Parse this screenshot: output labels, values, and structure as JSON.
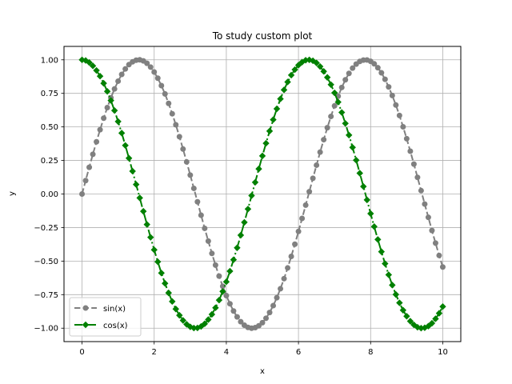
{
  "chart_data": {
    "type": "line",
    "title": "To study custom plot",
    "xlabel": "x",
    "ylabel": "y",
    "xlim": [
      -0.5,
      10.5
    ],
    "ylim": [
      -1.1,
      1.1
    ],
    "grid": true,
    "legend_position": "lower-left",
    "xticks": [
      0,
      2,
      4,
      6,
      8,
      10
    ],
    "xtick_labels": [
      "0",
      "2",
      "4",
      "6",
      "8",
      "10"
    ],
    "yticks": [
      -1.0,
      -0.75,
      -0.5,
      -0.25,
      0.0,
      0.25,
      0.5,
      0.75,
      1.0
    ],
    "ytick_labels": [
      "−1.00",
      "−0.75",
      "−0.50",
      "−0.25",
      "0.00",
      "0.25",
      "0.50",
      "0.75",
      "1.00"
    ],
    "series": [
      {
        "name": "sin(x)",
        "color": "#808080",
        "marker": "circle",
        "linestyle": "dashed",
        "x": [
          0.0,
          0.1,
          0.2,
          0.3,
          0.4,
          0.5,
          0.6,
          0.7,
          0.8,
          0.9,
          1.0,
          1.1,
          1.2,
          1.3,
          1.4,
          1.5,
          1.6,
          1.7,
          1.8,
          1.9,
          2.0,
          2.1,
          2.2,
          2.3,
          2.4,
          2.5,
          2.6,
          2.7,
          2.8,
          2.9,
          3.0,
          3.1,
          3.2,
          3.3,
          3.4,
          3.5,
          3.6,
          3.7,
          3.8,
          3.9,
          4.0,
          4.1,
          4.2,
          4.3,
          4.4,
          4.5,
          4.6,
          4.7,
          4.8,
          4.9,
          5.0,
          5.1,
          5.2,
          5.3,
          5.4,
          5.5,
          5.6,
          5.7,
          5.8,
          5.9,
          6.0,
          6.1,
          6.2,
          6.3,
          6.4,
          6.5,
          6.6,
          6.7,
          6.8,
          6.9,
          7.0,
          7.1,
          7.2,
          7.3,
          7.4,
          7.5,
          7.6,
          7.7,
          7.8,
          7.9,
          8.0,
          8.1,
          8.2,
          8.3,
          8.4,
          8.5,
          8.6,
          8.7,
          8.8,
          8.9,
          9.0,
          9.1,
          9.2,
          9.3,
          9.4,
          9.5,
          9.6,
          9.7,
          9.8,
          9.9,
          10.0
        ],
        "y": [
          0.0,
          0.1,
          0.199,
          0.296,
          0.389,
          0.479,
          0.565,
          0.644,
          0.717,
          0.783,
          0.841,
          0.891,
          0.932,
          0.964,
          0.985,
          0.997,
          1.0,
          0.992,
          0.974,
          0.946,
          0.909,
          0.863,
          0.808,
          0.746,
          0.675,
          0.598,
          0.516,
          0.427,
          0.335,
          0.239,
          0.141,
          0.042,
          -0.058,
          -0.158,
          -0.256,
          -0.351,
          -0.443,
          -0.53,
          -0.612,
          -0.688,
          -0.757,
          -0.818,
          -0.872,
          -0.916,
          -0.952,
          -0.978,
          -0.994,
          -1.0,
          -0.996,
          -0.982,
          -0.959,
          -0.926,
          -0.883,
          -0.832,
          -0.773,
          -0.706,
          -0.631,
          -0.551,
          -0.465,
          -0.374,
          -0.279,
          -0.182,
          -0.083,
          0.017,
          0.117,
          0.215,
          0.312,
          0.405,
          0.494,
          0.578,
          0.657,
          0.729,
          0.794,
          0.851,
          0.899,
          0.938,
          0.968,
          0.988,
          0.998,
          0.999,
          0.989,
          0.97,
          0.941,
          0.903,
          0.855,
          0.798,
          0.734,
          0.663,
          0.585,
          0.501,
          0.412,
          0.319,
          0.223,
          0.124,
          0.025,
          -0.075,
          -0.174,
          -0.272,
          -0.366,
          -0.458,
          -0.544
        ]
      },
      {
        "name": "cos(x)",
        "color": "#008000",
        "marker": "diamond",
        "linestyle": "dashdot",
        "x": [
          0.0,
          0.1,
          0.2,
          0.3,
          0.4,
          0.5,
          0.6,
          0.7,
          0.8,
          0.9,
          1.0,
          1.1,
          1.2,
          1.3,
          1.4,
          1.5,
          1.6,
          1.7,
          1.8,
          1.9,
          2.0,
          2.1,
          2.2,
          2.3,
          2.4,
          2.5,
          2.6,
          2.7,
          2.8,
          2.9,
          3.0,
          3.1,
          3.2,
          3.3,
          3.4,
          3.5,
          3.6,
          3.7,
          3.8,
          3.9,
          4.0,
          4.1,
          4.2,
          4.3,
          4.4,
          4.5,
          4.6,
          4.7,
          4.8,
          4.9,
          5.0,
          5.1,
          5.2,
          5.3,
          5.4,
          5.5,
          5.6,
          5.7,
          5.8,
          5.9,
          6.0,
          6.1,
          6.2,
          6.3,
          6.4,
          6.5,
          6.6,
          6.7,
          6.8,
          6.9,
          7.0,
          7.1,
          7.2,
          7.3,
          7.4,
          7.5,
          7.6,
          7.7,
          7.8,
          7.9,
          8.0,
          8.1,
          8.2,
          8.3,
          8.4,
          8.5,
          8.6,
          8.7,
          8.8,
          8.9,
          9.0,
          9.1,
          9.2,
          9.3,
          9.4,
          9.5,
          9.6,
          9.7,
          9.8,
          9.9,
          10.0
        ],
        "y": [
          1.0,
          0.995,
          0.98,
          0.955,
          0.921,
          0.878,
          0.825,
          0.765,
          0.697,
          0.622,
          0.54,
          0.454,
          0.362,
          0.267,
          0.17,
          0.071,
          -0.029,
          -0.129,
          -0.227,
          -0.323,
          -0.416,
          -0.505,
          -0.589,
          -0.666,
          -0.737,
          -0.801,
          -0.857,
          -0.904,
          -0.942,
          -0.971,
          -0.99,
          -0.999,
          -0.998,
          -0.987,
          -0.967,
          -0.936,
          -0.897,
          -0.848,
          -0.791,
          -0.726,
          -0.654,
          -0.575,
          -0.49,
          -0.401,
          -0.307,
          -0.211,
          -0.112,
          -0.012,
          0.087,
          0.187,
          0.284,
          0.378,
          0.469,
          0.554,
          0.635,
          0.709,
          0.776,
          0.835,
          0.886,
          0.927,
          0.96,
          0.983,
          0.997,
          1.0,
          0.993,
          0.977,
          0.95,
          0.914,
          0.869,
          0.815,
          0.754,
          0.685,
          0.608,
          0.526,
          0.439,
          0.347,
          0.252,
          0.155,
          0.056,
          -0.044,
          -0.146,
          -0.243,
          -0.339,
          -0.43,
          -0.519,
          -0.602,
          -0.679,
          -0.749,
          -0.811,
          -0.866,
          -0.911,
          -0.948,
          -0.975,
          -0.993,
          -1.0,
          -0.997,
          -0.985,
          -0.963,
          -0.93,
          -0.889,
          -0.839
        ]
      }
    ]
  }
}
